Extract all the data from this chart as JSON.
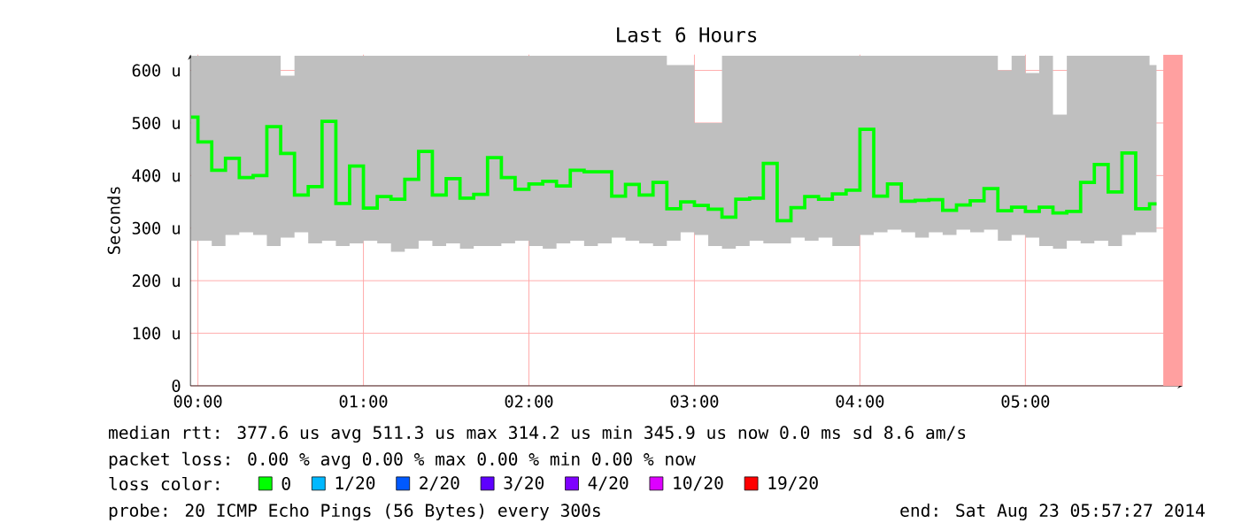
{
  "chart_data": {
    "type": "step",
    "title": "Last 6 Hours",
    "ylabel": "Seconds",
    "legend_title": "loss color:",
    "legend": "bottom",
    "grid": true,
    "xlim": [
      -0.045,
      5.95
    ],
    "ylim": [
      0,
      630
    ],
    "xticks": [
      {
        "value": 0,
        "label": "00:00"
      },
      {
        "value": 1,
        "label": "01:00"
      },
      {
        "value": 2,
        "label": "02:00"
      },
      {
        "value": 3,
        "label": "03:00"
      },
      {
        "value": 4,
        "label": "04:00"
      },
      {
        "value": 5,
        "label": "05:00"
      }
    ],
    "yticks": [
      0,
      {
        "value": 100,
        "label": "100 u"
      },
      {
        "value": 200,
        "label": "200 u"
      },
      {
        "value": 300,
        "label": "300 u"
      },
      {
        "value": 400,
        "label": "400 u"
      },
      {
        "value": 500,
        "label": "500 u"
      },
      {
        "value": 600,
        "label": "600 u"
      }
    ],
    "x": [
      -0.042,
      0.042,
      0.125,
      0.208,
      0.292,
      0.375,
      0.458,
      0.542,
      0.625,
      0.708,
      0.792,
      0.875,
      0.958,
      1.042,
      1.125,
      1.208,
      1.292,
      1.375,
      1.458,
      1.542,
      1.625,
      1.708,
      1.792,
      1.875,
      1.958,
      2.042,
      2.125,
      2.208,
      2.292,
      2.375,
      2.458,
      2.542,
      2.625,
      2.708,
      2.792,
      2.875,
      2.958,
      3.042,
      3.125,
      3.208,
      3.292,
      3.375,
      3.458,
      3.542,
      3.625,
      3.708,
      3.792,
      3.875,
      3.958,
      4.042,
      4.125,
      4.208,
      4.292,
      4.375,
      4.458,
      4.542,
      4.625,
      4.708,
      4.792,
      4.875,
      4.958,
      5.042,
      5.125,
      5.208,
      5.292,
      5.375,
      5.458,
      5.542,
      5.625,
      5.708,
      5.792
    ],
    "series": [
      {
        "name": "0",
        "color": "#00ff00",
        "values": [
          511,
          464,
          410,
          433,
          396,
          400,
          493,
          442,
          363,
          379,
          503,
          347,
          418,
          338,
          360,
          355,
          393,
          446,
          363,
          394,
          357,
          364,
          434,
          396,
          374,
          384,
          389,
          380,
          410,
          407,
          407,
          361,
          383,
          363,
          387,
          337,
          350,
          343,
          336,
          321,
          355,
          357,
          423,
          314,
          339,
          360,
          355,
          365,
          372,
          488,
          361,
          384,
          351,
          353,
          354,
          334,
          344,
          352,
          375,
          333,
          340,
          332,
          340,
          329,
          332,
          387,
          421,
          369,
          443,
          337,
          346
        ],
        "lower": [
          276,
          276,
          266,
          287,
          292,
          287,
          266,
          282,
          292,
          271,
          276,
          266,
          271,
          276,
          271,
          255,
          261,
          276,
          266,
          271,
          261,
          266,
          266,
          271,
          276,
          266,
          261,
          271,
          276,
          266,
          271,
          282,
          276,
          271,
          266,
          276,
          292,
          287,
          266,
          261,
          266,
          276,
          271,
          271,
          282,
          276,
          282,
          266,
          266,
          287,
          292,
          297,
          292,
          282,
          292,
          287,
          297,
          292,
          297,
          276,
          287,
          282,
          266,
          261,
          276,
          271,
          276,
          266,
          287,
          292,
          292
        ],
        "upper": [
          628,
          628,
          628,
          628,
          628,
          628,
          628,
          590,
          628,
          628,
          628,
          628,
          628,
          628,
          628,
          628,
          628,
          628,
          628,
          628,
          628,
          628,
          628,
          628,
          628,
          628,
          628,
          628,
          628,
          628,
          628,
          628,
          628,
          628,
          628,
          610,
          610,
          500,
          500,
          628,
          628,
          628,
          628,
          628,
          628,
          628,
          628,
          628,
          628,
          628,
          628,
          628,
          628,
          628,
          628,
          628,
          628,
          628,
          628,
          600,
          628,
          595,
          628,
          516,
          628,
          628,
          628,
          628,
          628,
          628,
          610
        ]
      },
      {
        "name": "1/20",
        "color": "#00b8ff",
        "values": [
          null,
          null,
          null,
          null,
          null,
          null,
          null,
          null,
          null,
          null,
          null,
          null,
          null,
          null,
          null,
          null,
          null,
          null,
          null,
          null,
          null,
          null,
          null,
          null,
          null,
          null,
          null,
          null,
          null,
          null,
          null,
          null,
          null,
          null,
          null,
          null,
          null,
          null,
          null,
          null,
          null,
          null,
          null,
          null,
          null,
          null,
          null,
          null,
          null,
          null,
          null,
          null,
          null,
          null,
          null,
          null,
          null,
          null,
          null,
          null,
          null,
          null,
          null,
          null,
          null,
          null,
          null,
          null,
          null,
          null,
          null
        ]
      },
      {
        "name": "2/20",
        "color": "#0059ff",
        "values": [
          null,
          null,
          null,
          null,
          null,
          null,
          null,
          null,
          null,
          null,
          null,
          null,
          null,
          null,
          null,
          null,
          null,
          null,
          null,
          null,
          null,
          null,
          null,
          null,
          null,
          null,
          null,
          null,
          null,
          null,
          null,
          null,
          null,
          null,
          null,
          null,
          null,
          null,
          null,
          null,
          null,
          null,
          null,
          null,
          null,
          null,
          null,
          null,
          null,
          null,
          null,
          null,
          null,
          null,
          null,
          null,
          null,
          null,
          null,
          null,
          null,
          null,
          null,
          null,
          null,
          null,
          null,
          null,
          null,
          null,
          null
        ]
      },
      {
        "name": "3/20",
        "color": "#5e00ff",
        "values": [
          null,
          null,
          null,
          null,
          null,
          null,
          null,
          null,
          null,
          null,
          null,
          null,
          null,
          null,
          null,
          null,
          null,
          null,
          null,
          null,
          null,
          null,
          null,
          null,
          null,
          null,
          null,
          null,
          null,
          null,
          null,
          null,
          null,
          null,
          null,
          null,
          null,
          null,
          null,
          null,
          null,
          null,
          null,
          null,
          null,
          null,
          null,
          null,
          null,
          null,
          null,
          null,
          null,
          null,
          null,
          null,
          null,
          null,
          null,
          null,
          null,
          null,
          null,
          null,
          null,
          null,
          null,
          null,
          null,
          null,
          null
        ]
      },
      {
        "name": "4/20",
        "color": "#7e00ff",
        "values": [
          null,
          null,
          null,
          null,
          null,
          null,
          null,
          null,
          null,
          null,
          null,
          null,
          null,
          null,
          null,
          null,
          null,
          null,
          null,
          null,
          null,
          null,
          null,
          null,
          null,
          null,
          null,
          null,
          null,
          null,
          null,
          null,
          null,
          null,
          null,
          null,
          null,
          null,
          null,
          null,
          null,
          null,
          null,
          null,
          null,
          null,
          null,
          null,
          null,
          null,
          null,
          null,
          null,
          null,
          null,
          null,
          null,
          null,
          null,
          null,
          null,
          null,
          null,
          null,
          null,
          null,
          null,
          null,
          null,
          null,
          null
        ]
      },
      {
        "name": "10/20",
        "color": "#dd00ff",
        "values": [
          null,
          null,
          null,
          null,
          null,
          null,
          null,
          null,
          null,
          null,
          null,
          null,
          null,
          null,
          null,
          null,
          null,
          null,
          null,
          null,
          null,
          null,
          null,
          null,
          null,
          null,
          null,
          null,
          null,
          null,
          null,
          null,
          null,
          null,
          null,
          null,
          null,
          null,
          null,
          null,
          null,
          null,
          null,
          null,
          null,
          null,
          null,
          null,
          null,
          null,
          null,
          null,
          null,
          null,
          null,
          null,
          null,
          null,
          null,
          null,
          null,
          null,
          null,
          null,
          null,
          null,
          null,
          null,
          null,
          null,
          null
        ]
      },
      {
        "name": "19/20",
        "color": "#ff0000",
        "values": [
          null,
          null,
          null,
          null,
          null,
          null,
          null,
          null,
          null,
          null,
          null,
          null,
          null,
          null,
          null,
          null,
          null,
          null,
          null,
          null,
          null,
          null,
          null,
          null,
          null,
          null,
          null,
          null,
          null,
          null,
          null,
          null,
          null,
          null,
          null,
          null,
          null,
          null,
          null,
          null,
          null,
          null,
          null,
          null,
          null,
          null,
          null,
          null,
          null,
          null,
          null,
          null,
          null,
          null,
          null,
          null,
          null,
          null,
          null,
          null,
          null,
          null,
          null,
          null,
          null,
          null,
          null,
          null,
          null,
          null,
          null
        ]
      }
    ],
    "bands": [
      {
        "axis": "x",
        "from": 5.833,
        "to": 5.95,
        "color": "#ffa0a0"
      }
    ],
    "annotations": [
      "median rtt: 377.6 us avg 511.3 us max 314.2 us min 345.9 us now 0.0 ms sd 8.6 am/s",
      "packet loss: 0.00 % avg 0.00 % max 0.00 % min 0.00 % now",
      "probe: 20 ICMP Echo Pings (56 Bytes) every 300s",
      "end: Sat Aug 23 05:57:27 2014"
    ]
  }
}
